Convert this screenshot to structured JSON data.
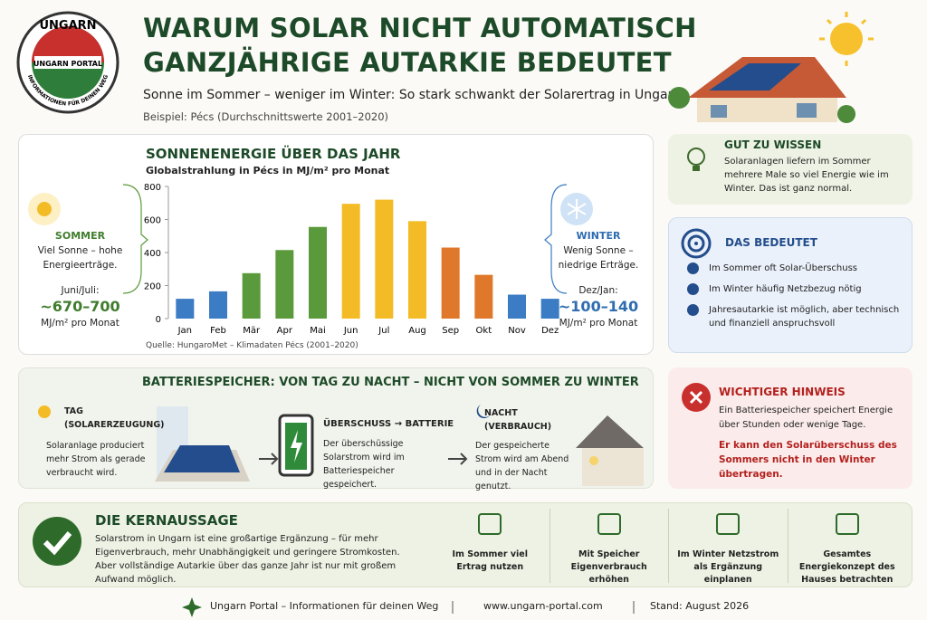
{
  "header": {
    "logo_top": "UNGARN",
    "logo_middle": "UNGARN PORTAL",
    "logo_ring": "INFORMATIONEN FÜR DEINEN WEG",
    "title_line1": "WARUM SOLAR NICHT AUTOMATISCH",
    "title_line2": "GANZJÄHRIGE AUTARKIE BEDEUTET",
    "subtitle": "Sonne im Sommer – weniger im Winter: So stark schwankt der Solarertrag in Ungarn.",
    "example": "Beispiel: Pécs (Durchschnittswerte 2001–2020)"
  },
  "chart_data": {
    "type": "bar",
    "title": "SONNENENERGIE ÜBER DAS JAHR",
    "subtitle": "Globalstrahlung in Pécs in MJ/m² pro Monat",
    "source": "Quelle: HungaroMet – Klimadaten Pécs (2001–2020)",
    "categories": [
      "Jan",
      "Feb",
      "Mär",
      "Apr",
      "Mai",
      "Jun",
      "Jul",
      "Aug",
      "Sep",
      "Okt",
      "Nov",
      "Dez"
    ],
    "values": [
      120,
      165,
      275,
      415,
      555,
      695,
      720,
      590,
      430,
      265,
      145,
      120
    ],
    "colors": [
      "#3b7cc4",
      "#3b7cc4",
      "#5b9a3c",
      "#5b9a3c",
      "#5b9a3c",
      "#f3bb25",
      "#f3bb25",
      "#f3bb25",
      "#e0782b",
      "#e0782b",
      "#3b7cc4",
      "#3b7cc4"
    ],
    "ylim": [
      0,
      800
    ],
    "yticks": [
      0,
      200,
      400,
      600,
      800
    ]
  },
  "summer": {
    "title": "SOMMER",
    "text": "Viel Sonne – hohe Energieerträge.",
    "period": "Juni/Juli:",
    "range": "~670–700",
    "unit": "MJ/m² pro Monat"
  },
  "winter": {
    "title": "WINTER",
    "text": "Wenig Sonne – niedrige Erträge.",
    "period": "Dez/Jan:",
    "range": "~100–140",
    "unit": "MJ/m² pro Monat"
  },
  "good_to_know": {
    "title": "GUT ZU WISSEN",
    "text": "Solaranlagen liefern im Sommer mehrere Male so viel Energie wie im Winter. Das ist ganz normal."
  },
  "meaning": {
    "title": "DAS BEDEUTET",
    "items": [
      "Im Sommer oft Solar-Überschuss",
      "Im Winter häufig Netzbezug nötig",
      "Jahresautarkie ist möglich, aber technisch und finanziell anspruchsvoll"
    ]
  },
  "warning": {
    "title": "WICHTIGER HINWEIS",
    "text": "Ein Batteriespeicher speichert Energie über Stunden oder wenige Tage.",
    "emphasis": "Er kann den Solarüberschuss des Sommers nicht in den Winter übertragen."
  },
  "battery": {
    "title": "BATTERIESPEICHER: VON TAG ZU NACHT – NICHT VON SOMMER ZU WINTER",
    "steps": [
      {
        "title": "TAG",
        "subtitle": "(SOLARERZEUGUNG)",
        "text": "Solaranlage produciert mehr Strom als gerade verbraucht wird."
      },
      {
        "title": "ÜBERSCHUSS → BATTERIE",
        "text": "Der überschüssige Solarstrom wird im Batteriespeicher gespeichert."
      },
      {
        "title": "NACHT",
        "subtitle": "(VERBRAUCH)",
        "text": "Der gespeicherte Strom wird am Abend und in der Nacht genutzt."
      }
    ]
  },
  "key_message": {
    "title": "DIE KERNAUSSAGE",
    "text": "Solarstrom in Ungarn ist eine großartige Ergänzung – für mehr Eigenverbrauch, mehr Unabhängigkeit und geringere Stromkosten. Aber vollständige Autarkie über das ganze Jahr ist nur mit großem Aufwand möglich.",
    "points": [
      "Im Sommer viel Ertrag nutzen",
      "Mit Speicher Eigenverbrauch erhöhen",
      "Im Winter Netzstrom als Ergänzung einplanen",
      "Gesamtes Energiekonzept des Hauses betrachten"
    ]
  },
  "footer": {
    "portal": "Ungarn Portal – Informationen für deinen Weg",
    "url": "www.ungarn-portal.com",
    "date": "Stand: August 2026"
  }
}
